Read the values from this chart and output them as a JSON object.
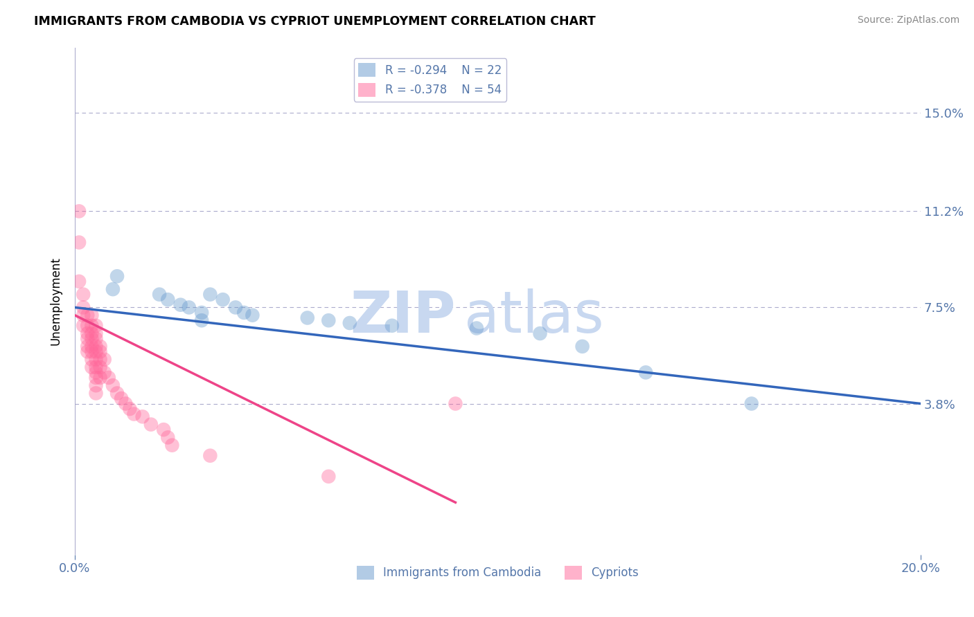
{
  "title": "IMMIGRANTS FROM CAMBODIA VS CYPRIOT UNEMPLOYMENT CORRELATION CHART",
  "source": "Source: ZipAtlas.com",
  "xlabel_label": "Immigrants from Cambodia",
  "ylabel_label": "Unemployment",
  "xlim": [
    0.0,
    0.2
  ],
  "ylim": [
    -0.02,
    0.175
  ],
  "yticks": [
    0.038,
    0.075,
    0.112,
    0.15
  ],
  "ytick_labels": [
    "3.8%",
    "7.5%",
    "11.2%",
    "15.0%"
  ],
  "xticks": [
    0.0,
    0.2
  ],
  "xtick_labels": [
    "0.0%",
    "20.0%"
  ],
  "blue_R": "R = -0.294",
  "blue_N": "N = 22",
  "pink_R": "R = -0.378",
  "pink_N": "N = 54",
  "blue_color": "#6699CC",
  "pink_color": "#FF6699",
  "blue_scatter_x": [
    0.009,
    0.01,
    0.02,
    0.022,
    0.025,
    0.027,
    0.03,
    0.03,
    0.032,
    0.035,
    0.038,
    0.04,
    0.042,
    0.055,
    0.06,
    0.065,
    0.075,
    0.095,
    0.11,
    0.12,
    0.135,
    0.16
  ],
  "blue_scatter_y": [
    0.082,
    0.087,
    0.08,
    0.078,
    0.076,
    0.075,
    0.073,
    0.07,
    0.08,
    0.078,
    0.075,
    0.073,
    0.072,
    0.071,
    0.07,
    0.069,
    0.068,
    0.067,
    0.065,
    0.06,
    0.05,
    0.038
  ],
  "pink_scatter_x": [
    0.001,
    0.001,
    0.001,
    0.002,
    0.002,
    0.002,
    0.002,
    0.003,
    0.003,
    0.003,
    0.003,
    0.003,
    0.003,
    0.004,
    0.004,
    0.004,
    0.004,
    0.004,
    0.004,
    0.004,
    0.004,
    0.005,
    0.005,
    0.005,
    0.005,
    0.005,
    0.005,
    0.005,
    0.005,
    0.005,
    0.005,
    0.005,
    0.006,
    0.006,
    0.006,
    0.006,
    0.006,
    0.007,
    0.007,
    0.008,
    0.009,
    0.01,
    0.011,
    0.012,
    0.013,
    0.014,
    0.016,
    0.018,
    0.021,
    0.022,
    0.023,
    0.032,
    0.06,
    0.09
  ],
  "pink_scatter_y": [
    0.112,
    0.1,
    0.085,
    0.08,
    0.075,
    0.072,
    0.068,
    0.072,
    0.068,
    0.065,
    0.063,
    0.06,
    0.058,
    0.072,
    0.068,
    0.065,
    0.063,
    0.06,
    0.058,
    0.055,
    0.052,
    0.068,
    0.065,
    0.063,
    0.06,
    0.058,
    0.055,
    0.052,
    0.05,
    0.048,
    0.045,
    0.042,
    0.06,
    0.058,
    0.055,
    0.052,
    0.048,
    0.055,
    0.05,
    0.048,
    0.045,
    0.042,
    0.04,
    0.038,
    0.036,
    0.034,
    0.033,
    0.03,
    0.028,
    0.025,
    0.022,
    0.018,
    0.01,
    0.038
  ],
  "blue_line_x": [
    0.0,
    0.2
  ],
  "blue_line_y": [
    0.075,
    0.038
  ],
  "pink_line_x": [
    0.0,
    0.09
  ],
  "pink_line_y": [
    0.072,
    0.0
  ],
  "watermark_zip": "ZIP",
  "watermark_atlas": "atlas",
  "grid_color": "#AAAACC",
  "background_color": "#FFFFFF",
  "title_fontsize": 13,
  "tick_color": "#5577AA",
  "watermark_color": "#C8D8F0"
}
